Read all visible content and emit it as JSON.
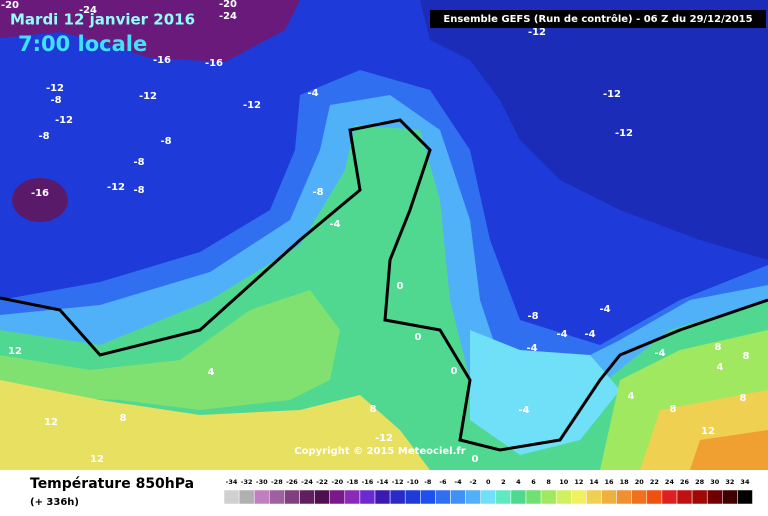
{
  "header": {
    "date": "Mardi 12 janvier 2016",
    "time": "7:00 locale",
    "model": "Ensemble GEFS  (Run de contrôle)  -  06 Z du 29/12/2015"
  },
  "footer": {
    "title": "Température 850hPa",
    "lead": "(+ 336h)",
    "copyright": "Copyright © 2015 Meteociel.fr"
  },
  "scale": {
    "values": [
      -34,
      -32,
      -30,
      -28,
      -26,
      -24,
      -22,
      -20,
      -18,
      -16,
      -14,
      -12,
      -10,
      -8,
      -6,
      -4,
      -2,
      0,
      2,
      4,
      6,
      8,
      10,
      12,
      14,
      16,
      18,
      20,
      22,
      24,
      26,
      28,
      30,
      32,
      34
    ],
    "colors": [
      "#d0d0d0",
      "#b0b0b0",
      "#c080c0",
      "#a060a0",
      "#804080",
      "#602060",
      "#501050",
      "#7a1a8a",
      "#8a2ab8",
      "#6a2ad0",
      "#3a1ab0",
      "#2a2ac8",
      "#1e3ad8",
      "#1e50f0",
      "#3070f0",
      "#4090f8",
      "#50b0f8",
      "#70e0f8",
      "#60e8c0",
      "#50d890",
      "#70e070",
      "#a0e860",
      "#d0f060",
      "#f0f060",
      "#f0d050",
      "#f0b040",
      "#f09030",
      "#f07020",
      "#f05010",
      "#e02020",
      "#c01010",
      "#a00808",
      "#700000",
      "#400000",
      "#000000"
    ]
  },
  "map_labels": [
    -20,
    -24,
    -20,
    -24,
    -16,
    -16,
    -12,
    -8,
    -12,
    -12,
    -8,
    -8,
    -8,
    -12,
    -8,
    -16,
    -12,
    -4,
    -8,
    -4,
    -12,
    -12,
    -12,
    0,
    0,
    -8,
    -4,
    -4,
    -4,
    -4,
    -4,
    8,
    8,
    4,
    12,
    4,
    0,
    4,
    8,
    8,
    -4,
    12,
    8,
    8,
    -12,
    12,
    12,
    0
  ]
}
